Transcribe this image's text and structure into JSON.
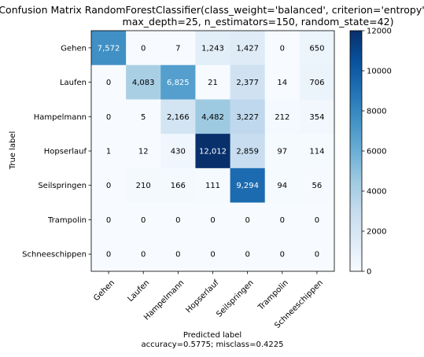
{
  "chart_data": {
    "type": "heatmap",
    "title_line1": "Confusion Matrix RandomForestClassifier(class_weight='balanced', criterion='entropy',",
    "title_line2": "max_depth=25, n_estimators=150, random_state=42)",
    "xlabel": "Predicted label",
    "xlabel_sub": "accuracy=0.5775; misclass=0.4225",
    "ylabel": "True label",
    "labels": [
      "Gehen",
      "Laufen",
      "Hampelmann",
      "Hopserlauf",
      "Seilspringen",
      "Trampolin",
      "Schneeschippen"
    ],
    "matrix": [
      [
        7572,
        0,
        7,
        1243,
        1427,
        0,
        650
      ],
      [
        0,
        4083,
        6825,
        21,
        2377,
        14,
        706
      ],
      [
        0,
        5,
        2166,
        4482,
        3227,
        212,
        354
      ],
      [
        1,
        12,
        430,
        12012,
        2859,
        97,
        114
      ],
      [
        0,
        210,
        166,
        111,
        9294,
        94,
        56
      ],
      [
        0,
        0,
        0,
        0,
        0,
        0,
        0
      ],
      [
        0,
        0,
        0,
        0,
        0,
        0,
        0
      ]
    ],
    "colorbar": {
      "min": 0,
      "max": 12000,
      "ticks": [
        0,
        2000,
        4000,
        6000,
        8000,
        10000,
        12000
      ],
      "colormap": "Blues"
    }
  }
}
